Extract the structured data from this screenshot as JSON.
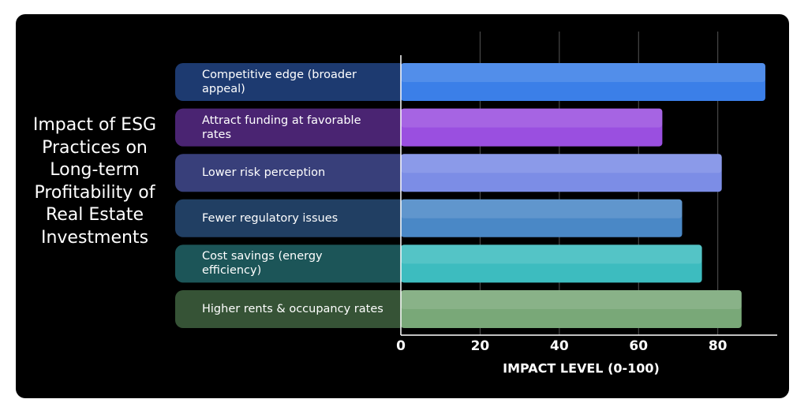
{
  "chart_data": {
    "type": "barh",
    "title": "Impact of ESG Practices on Long-term Profitability of Real Estate Investments",
    "xlabel": "IMPACT LEVEL (0-100)",
    "categories": [
      "Competitive edge (broader appeal)",
      "Attract funding at favorable rates",
      "Lower risk perception",
      "Fewer regulatory issues",
      "Cost savings (energy efficiency)",
      "Higher rents & occupancy rates"
    ],
    "values": [
      92,
      66,
      81,
      71,
      76,
      86
    ],
    "colors": [
      "#3b7fe8",
      "#9a4fe0",
      "#7c8de6",
      "#4a88c6",
      "#3dbcbf",
      "#79a878"
    ],
    "label_colors": [
      "#1d3a70",
      "#4a2472",
      "#383f7a",
      "#213f63",
      "#1c5558",
      "#365336"
    ],
    "xlim": [
      0,
      95
    ],
    "xticks": [
      0,
      20,
      40,
      60,
      80
    ],
    "grid": true
  }
}
